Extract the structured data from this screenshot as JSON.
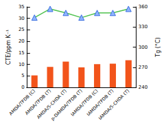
{
  "chart_data": {
    "type": "bar",
    "categories": [
      "AMDA/TFDB (C)",
      "AMDA/TFDB (T)",
      "AMDA/5-CHDA (T)",
      "p-DAMDA/TFDB (T)",
      "IAMDA/TFDB (C)",
      "IAMDA/TFDB (T)",
      "IAMDA/5-CHDA (T)"
    ],
    "y_label": "CTE/ppm K⁻¹",
    "y2_label": "Tg (°C)",
    "ylim": [
      0,
      35
    ],
    "yticks": [
      0,
      5,
      10,
      15,
      20,
      25,
      30,
      35
    ],
    "y2lim": [
      240,
      360
    ],
    "y2ticks": [
      240,
      270,
      300,
      330,
      360
    ],
    "grid": false,
    "series": [
      {
        "name": "CTE",
        "type": "bar",
        "color": "#f2541b",
        "values": [
          5.2,
          8.9,
          11.2,
          8.7,
          10.1,
          10.3,
          11.8
        ]
      },
      {
        "name": "Tg",
        "type": "line",
        "axis": "y2",
        "color": "#4fc24f",
        "marker": "triangle",
        "values": [
          344,
          357,
          351,
          344,
          351,
          351,
          357
        ]
      }
    ]
  }
}
